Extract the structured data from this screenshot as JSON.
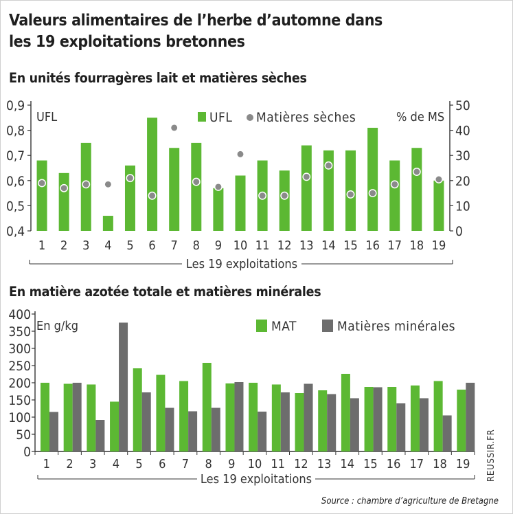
{
  "title_line1": "Valeurs alimentaires de l’herbe d’automne dans",
  "title_line2": "les 19 exploitations bretonnes",
  "source": "Source : chambre d’agriculture de Bretagne",
  "credit": "REUSSIR.FR",
  "colors": {
    "green": "#5cb833",
    "gray": "#6d6d6d",
    "dot": "#8a8a8a",
    "axis": "#333333"
  },
  "chart_data": [
    {
      "type": "bar",
      "title": "En unités fourragères lait et matières sèches",
      "categories": [
        "1",
        "2",
        "3",
        "4",
        "5",
        "6",
        "7",
        "8",
        "9",
        "10",
        "11",
        "12",
        "13",
        "14",
        "15",
        "16",
        "17",
        "18",
        "19"
      ],
      "xlabel": "Les 19 exploitations",
      "left_axis_label": "UFL",
      "right_axis_label": "% de MS",
      "ylim_left": [
        0.4,
        0.9
      ],
      "yticks_left": [
        "0,4",
        "0,5",
        "0,6",
        "0,7",
        "0,8",
        "0,9"
      ],
      "ylim_right": [
        0,
        50
      ],
      "yticks_right": [
        "0",
        "10",
        "20",
        "30",
        "40",
        "50"
      ],
      "legend_position": "top",
      "series": [
        {
          "name": "UFL",
          "kind": "bar",
          "axis": "left",
          "values": [
            0.68,
            0.63,
            0.75,
            0.46,
            0.66,
            0.85,
            0.73,
            0.75,
            0.57,
            0.62,
            0.68,
            0.64,
            0.74,
            0.72,
            0.72,
            0.81,
            0.68,
            0.73,
            0.6
          ]
        },
        {
          "name": "Matières sèches",
          "kind": "dot",
          "axis": "right",
          "values": [
            19,
            17,
            18.5,
            18.5,
            21,
            14,
            41,
            19.5,
            17.5,
            30.5,
            14,
            14,
            21.5,
            26,
            14.5,
            15,
            18.5,
            23.5,
            20.5
          ]
        }
      ]
    },
    {
      "type": "bar",
      "title": "En matière azotée totale et matières minérales",
      "categories": [
        "1",
        "2",
        "3",
        "4",
        "5",
        "6",
        "7",
        "8",
        "9",
        "10",
        "11",
        "12",
        "13",
        "14",
        "15",
        "16",
        "17",
        "18",
        "19"
      ],
      "xlabel": "Les 19 exploitations",
      "ylabel": "En g/kg",
      "ylim": [
        0,
        400
      ],
      "yticks": [
        "0",
        "50",
        "100",
        "150",
        "200",
        "250",
        "300",
        "350",
        "400"
      ],
      "legend_position": "top-right",
      "series": [
        {
          "name": "MAT",
          "values": [
            200,
            197,
            195,
            145,
            242,
            223,
            205,
            258,
            198,
            200,
            195,
            170,
            178,
            226,
            188,
            188,
            192,
            205,
            180
          ]
        },
        {
          "name": "Matières minérales",
          "values": [
            115,
            200,
            92,
            375,
            172,
            127,
            117,
            127,
            202,
            116,
            172,
            197,
            167,
            155,
            187,
            140,
            155,
            105,
            200
          ]
        }
      ]
    }
  ]
}
